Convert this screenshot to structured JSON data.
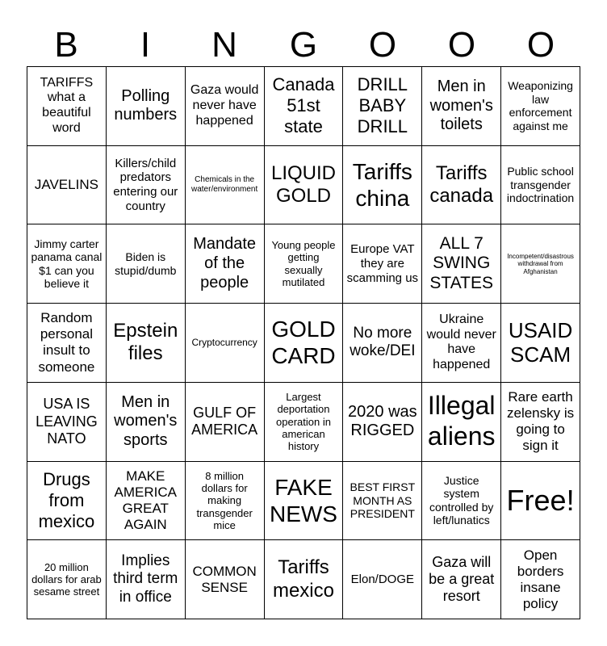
{
  "header": {
    "letters": [
      "B",
      "I",
      "N",
      "G",
      "O",
      "O",
      "O"
    ]
  },
  "grid": {
    "rows": [
      [
        "TARIFFS what a beautiful word",
        "Polling numbers",
        "Gaza would never have happened",
        "Canada 51st state",
        "DRILL BABY DRILL",
        "Men in women's toilets",
        "Weaponizing law enforcement against me"
      ],
      [
        "JAVELINS",
        "Killers/child predators entering our country",
        "Chemicals in the water/environment",
        "LIQUID GOLD",
        "Tariffs china",
        "Tariffs canada",
        "Public school transgender indoctrination"
      ],
      [
        "Jimmy carter panama canal $1 can you believe it",
        "Biden is stupid/dumb",
        "Mandate of the people",
        "Young people getting sexually mutilated",
        "Europe VAT they are scamming us",
        "ALL 7 SWING STATES",
        "Incompetent/disastrous withdrawal from Afghanistan"
      ],
      [
        "Random personal insult to someone",
        "Epstein files",
        "Cryptocurrency",
        "GOLD CARD",
        "No more woke/DEI",
        "Ukraine would never have happened",
        "USAID SCAM"
      ],
      [
        "USA IS LEAVING NATO",
        "Men in women's sports",
        "GULF OF AMERICA",
        "Largest deportation operation in american history",
        "2020 was RIGGED",
        "Illegal aliens",
        "Rare earth zelensky is going to sign it"
      ],
      [
        "Drugs from mexico",
        "MAKE AMERICA GREAT AGAIN",
        "8 million dollars for making transgender mice",
        "FAKE NEWS",
        "BEST FIRST MONTH AS PRESIDENT",
        "Justice system controlled by left/lunatics",
        "Free!"
      ],
      [
        "20 million dollars for arab sesame street",
        "Implies third term in office",
        "COMMON SENSE",
        "Tariffs mexico",
        "Elon/DOGE",
        "Gaza will be a great resort",
        "Open borders insane policy"
      ]
    ]
  }
}
